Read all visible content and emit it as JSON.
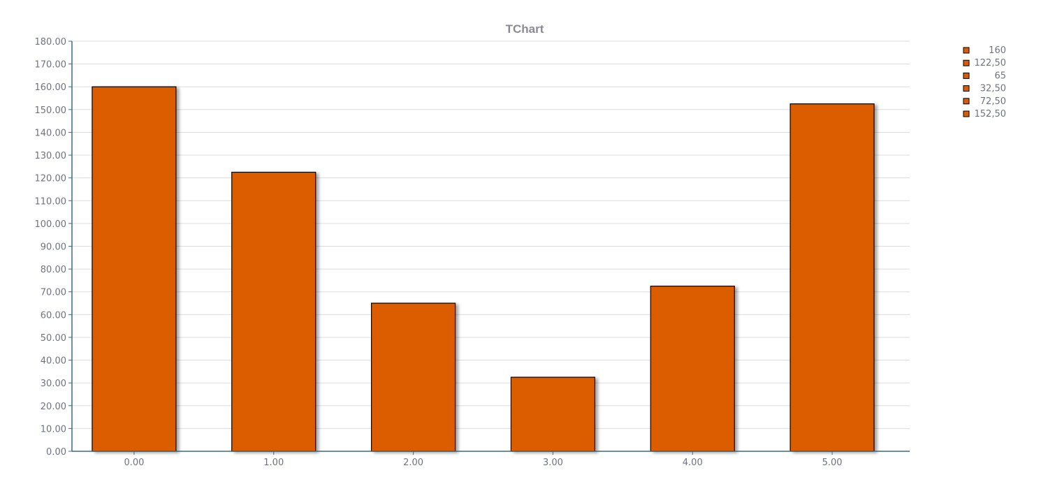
{
  "chart_data": {
    "type": "bar",
    "title": "TChart",
    "categories": [
      "0.00",
      "1.00",
      "2.00",
      "3.00",
      "4.00",
      "5.00"
    ],
    "values": [
      160,
      122.5,
      65,
      32.5,
      72.5,
      152.5
    ],
    "ylim": [
      0,
      180
    ],
    "ytick_step": 10,
    "ytick_labels": [
      "0.00",
      "10.00",
      "20.00",
      "30.00",
      "40.00",
      "50.00",
      "60.00",
      "70.00",
      "80.00",
      "90.00",
      "100.00",
      "110.00",
      "120.00",
      "130.00",
      "140.00",
      "150.00",
      "160.00",
      "170.00",
      "180.00"
    ],
    "legend": {
      "position": "top-right",
      "entries": [
        "160",
        "122,50",
        "65",
        "32,50",
        "72,50",
        "152,50"
      ]
    },
    "grid": true,
    "bar_color": "#dc5c05",
    "edge_color": "#000000"
  }
}
